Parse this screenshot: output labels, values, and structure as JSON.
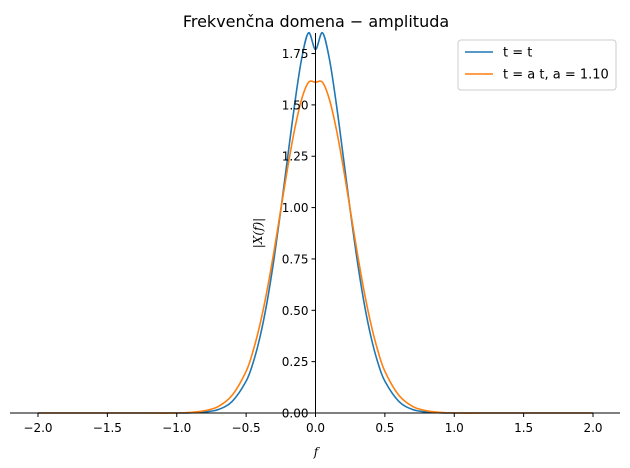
{
  "chart_data": {
    "type": "line",
    "title": "Frekvenčna domena − amplituda",
    "xlabel": "f",
    "ylabel": "|X(f)|",
    "xlim": [
      -2.0,
      2.0
    ],
    "ylim": [
      0.0,
      1.85
    ],
    "xticks": [
      -2.0,
      -1.5,
      -1.0,
      -0.5,
      0.0,
      0.5,
      1.0,
      1.5,
      2.0
    ],
    "xtick_labels": [
      "−2.0",
      "−1.5",
      "−1.0",
      "−0.5",
      "0.0",
      "0.5",
      "1.0",
      "1.5",
      "2.0"
    ],
    "yticks": [
      0.0,
      0.25,
      0.5,
      0.75,
      1.0,
      1.25,
      1.5,
      1.75
    ],
    "ytick_labels": [
      "0.00",
      "0.25",
      "0.50",
      "0.75",
      "1.00",
      "1.25",
      "1.50",
      "1.75"
    ],
    "grid": false,
    "legend_position": "top-right",
    "x": [
      -2.0,
      -1.8,
      -1.6,
      -1.4,
      -1.2,
      -1.0,
      -0.9,
      -0.8,
      -0.7,
      -0.6,
      -0.5,
      -0.45,
      -0.4,
      -0.35,
      -0.3,
      -0.25,
      -0.2,
      -0.15,
      -0.1,
      -0.05,
      0.0,
      0.05,
      0.1,
      0.15,
      0.2,
      0.25,
      0.3,
      0.35,
      0.4,
      0.45,
      0.5,
      0.6,
      0.7,
      0.8,
      0.9,
      1.0,
      1.2,
      1.4,
      1.6,
      1.8,
      2.0
    ],
    "series": [
      {
        "name": "t = t",
        "color": "#1f77b4",
        "values": [
          0.0,
          0.0,
          0.0,
          0.0,
          0.0,
          0.0,
          0.001,
          0.005,
          0.017,
          0.057,
          0.155,
          0.244,
          0.37,
          0.537,
          0.746,
          0.988,
          1.249,
          1.505,
          1.724,
          1.851,
          1.77,
          1.851,
          1.724,
          1.505,
          1.249,
          0.988,
          0.746,
          0.537,
          0.37,
          0.244,
          0.155,
          0.057,
          0.017,
          0.005,
          0.001,
          0.0,
          0.0,
          0.0,
          0.0,
          0.0,
          0.0
        ]
      },
      {
        "name": "t = a t, a = 1.10",
        "color": "#ff7f0e",
        "values": [
          0.0,
          0.0,
          0.0,
          0.0,
          0.0,
          0.0,
          0.003,
          0.011,
          0.032,
          0.087,
          0.203,
          0.302,
          0.432,
          0.594,
          0.784,
          0.991,
          1.197,
          1.382,
          1.527,
          1.61,
          1.61,
          1.61,
          1.527,
          1.382,
          1.197,
          0.991,
          0.784,
          0.594,
          0.432,
          0.302,
          0.203,
          0.087,
          0.032,
          0.011,
          0.003,
          0.0,
          0.0,
          0.0,
          0.0,
          0.0,
          0.0
        ]
      }
    ]
  }
}
